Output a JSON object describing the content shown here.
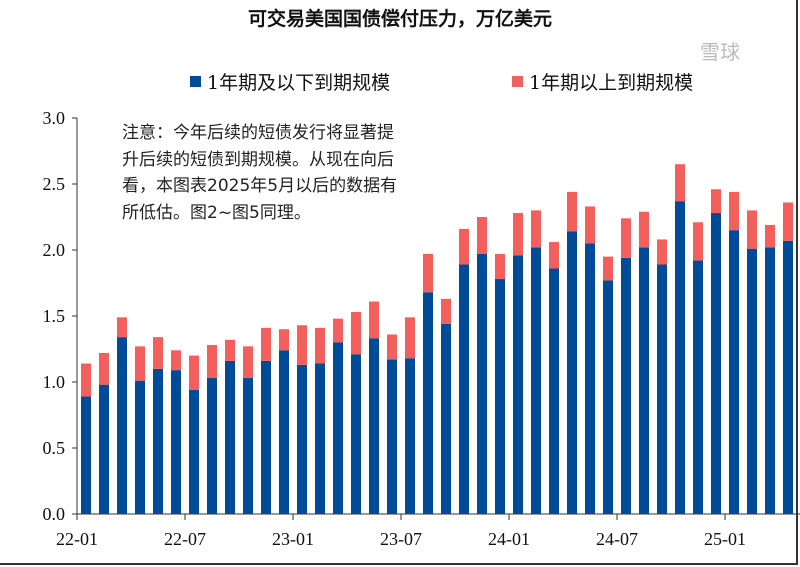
{
  "chart_data": {
    "type": "bar",
    "stacked": true,
    "title": "可交易美国国债偿付压力，万亿美元",
    "xlabel": "",
    "ylabel": "",
    "ylim": [
      0,
      3.0
    ],
    "yticks": [
      "0.0",
      "0.5",
      "1.0",
      "1.5",
      "2.0",
      "2.5",
      "3.0"
    ],
    "xtick_labels": [
      "22-01",
      "22-07",
      "23-01",
      "23-07",
      "24-01",
      "24-07",
      "25-01"
    ],
    "grid": false,
    "legend_position": "top",
    "categories": [
      "2022-01",
      "2022-02",
      "2022-03",
      "2022-04",
      "2022-05",
      "2022-06",
      "2022-07",
      "2022-08",
      "2022-09",
      "2022-10",
      "2022-11",
      "2022-12",
      "2023-01",
      "2023-02",
      "2023-03",
      "2023-04",
      "2023-05",
      "2023-06",
      "2023-07",
      "2023-08",
      "2023-09",
      "2023-10",
      "2023-11",
      "2023-12",
      "2024-01",
      "2024-02",
      "2024-03",
      "2024-04",
      "2024-05",
      "2024-06",
      "2024-07",
      "2024-08",
      "2024-09",
      "2024-10",
      "2024-11",
      "2024-12",
      "2025-01",
      "2025-02",
      "2025-03",
      "2025-04"
    ],
    "series": [
      {
        "name": "1年期及以下到期规模",
        "color": "#004B97",
        "values": [
          0.89,
          0.98,
          1.34,
          1.01,
          1.1,
          1.09,
          0.94,
          1.03,
          1.16,
          1.03,
          1.16,
          1.24,
          1.13,
          1.14,
          1.3,
          1.21,
          1.33,
          1.17,
          1.18,
          1.68,
          1.44,
          1.89,
          1.97,
          1.78,
          1.96,
          2.02,
          1.86,
          2.14,
          2.05,
          1.77,
          1.94,
          2.02,
          1.89,
          2.37,
          1.92,
          2.28,
          2.15,
          2.01,
          2.02,
          2.07
        ]
      },
      {
        "name": "1年期以上到期规模",
        "color": "#F25F5C",
        "values": [
          0.25,
          0.24,
          0.15,
          0.26,
          0.24,
          0.15,
          0.26,
          0.25,
          0.16,
          0.24,
          0.25,
          0.16,
          0.3,
          0.27,
          0.18,
          0.32,
          0.28,
          0.19,
          0.31,
          0.29,
          0.19,
          0.27,
          0.28,
          0.19,
          0.32,
          0.28,
          0.2,
          0.3,
          0.28,
          0.18,
          0.3,
          0.27,
          0.19,
          0.28,
          0.29,
          0.18,
          0.29,
          0.29,
          0.17,
          0.29
        ]
      }
    ],
    "annotation": "注意：今年后续的短债发行将显著提升后续的短债到期规模。从现在向后看，本图表2025年5月以后的数据有所低估。图2~图5同理。"
  },
  "watermark": "雪球"
}
